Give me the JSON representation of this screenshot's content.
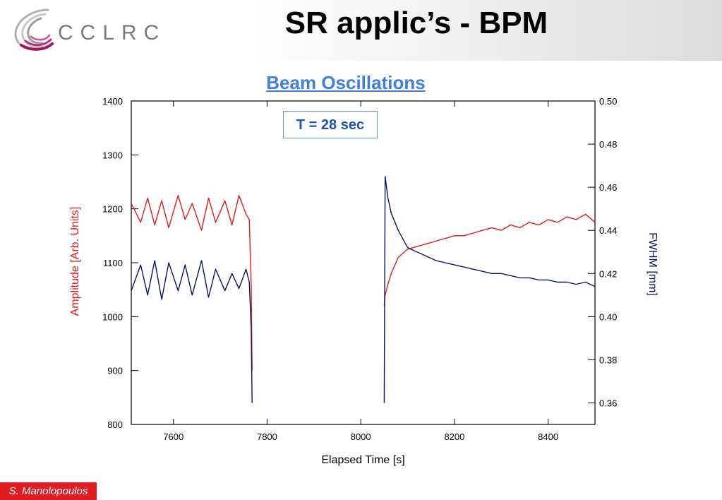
{
  "slide": {
    "logo_text": "CCLRC",
    "title": "SR applic’s - BPM",
    "author": "S. Manolopoulos"
  },
  "colors": {
    "amplitude": "#e11b1b",
    "fwhm": "#0a1464",
    "chart_title": "#3f7fe0",
    "footer_bg": "#e21b23"
  },
  "chart_data": {
    "type": "line",
    "title": "Beam Oscillations",
    "annotation": "T = 28 sec",
    "xlabel": "Elapsed Time [s]",
    "ylabel_left": "Amplitude [Arb. Units]",
    "ylabel_right": "FWHM [mm]",
    "xlim": [
      7510,
      8500
    ],
    "ylim_left": [
      800,
      1400
    ],
    "ylim_right": [
      0.35,
      0.5
    ],
    "x_ticks": [
      7600,
      7800,
      8000,
      8200,
      8400
    ],
    "y_ticks_left": [
      800,
      900,
      1000,
      1100,
      1200,
      1300,
      1400
    ],
    "y_ticks_right": [
      "0.36",
      "0.38",
      "0.40",
      "0.42",
      "0.44",
      "0.46",
      "0.48",
      "0.50"
    ],
    "legend": "none",
    "grid": false,
    "series": [
      {
        "name": "Amplitude",
        "axis": "left",
        "x": [
          7510,
          7530,
          7545,
          7560,
          7575,
          7590,
          7610,
          7625,
          7640,
          7660,
          7675,
          7690,
          7710,
          7725,
          7740,
          7755,
          7762,
          7766,
          7768,
          8050,
          8052,
          8058,
          8065,
          8080,
          8100,
          8120,
          8140,
          8160,
          8180,
          8200,
          8220,
          8240,
          8260,
          8280,
          8300,
          8320,
          8340,
          8360,
          8380,
          8400,
          8420,
          8440,
          8460,
          8480,
          8500
        ],
        "y": [
          1210,
          1175,
          1220,
          1170,
          1215,
          1165,
          1225,
          1180,
          1210,
          1160,
          1220,
          1175,
          1215,
          1170,
          1225,
          1190,
          1180,
          1060,
          900,
          1020,
          1040,
          1060,
          1080,
          1110,
          1125,
          1130,
          1135,
          1140,
          1145,
          1150,
          1150,
          1155,
          1160,
          1165,
          1160,
          1170,
          1165,
          1175,
          1170,
          1180,
          1175,
          1185,
          1180,
          1190,
          1175
        ]
      },
      {
        "name": "FWHM",
        "axis": "right",
        "x": [
          7510,
          7530,
          7545,
          7560,
          7575,
          7590,
          7610,
          7625,
          7640,
          7660,
          7675,
          7690,
          7710,
          7725,
          7740,
          7755,
          7762,
          7766,
          7768,
          8050,
          8052,
          8058,
          8065,
          8080,
          8100,
          8120,
          8140,
          8160,
          8180,
          8200,
          8220,
          8240,
          8260,
          8280,
          8300,
          8320,
          8340,
          8360,
          8380,
          8400,
          8420,
          8440,
          8460,
          8480,
          8500
        ],
        "y": [
          0.412,
          0.424,
          0.41,
          0.426,
          0.408,
          0.425,
          0.412,
          0.424,
          0.41,
          0.426,
          0.409,
          0.422,
          0.412,
          0.42,
          0.413,
          0.422,
          0.416,
          0.395,
          0.36,
          0.36,
          0.465,
          0.455,
          0.448,
          0.44,
          0.432,
          0.43,
          0.428,
          0.426,
          0.425,
          0.424,
          0.423,
          0.422,
          0.421,
          0.42,
          0.42,
          0.419,
          0.418,
          0.418,
          0.417,
          0.417,
          0.416,
          0.416,
          0.415,
          0.416,
          0.414
        ]
      }
    ]
  }
}
